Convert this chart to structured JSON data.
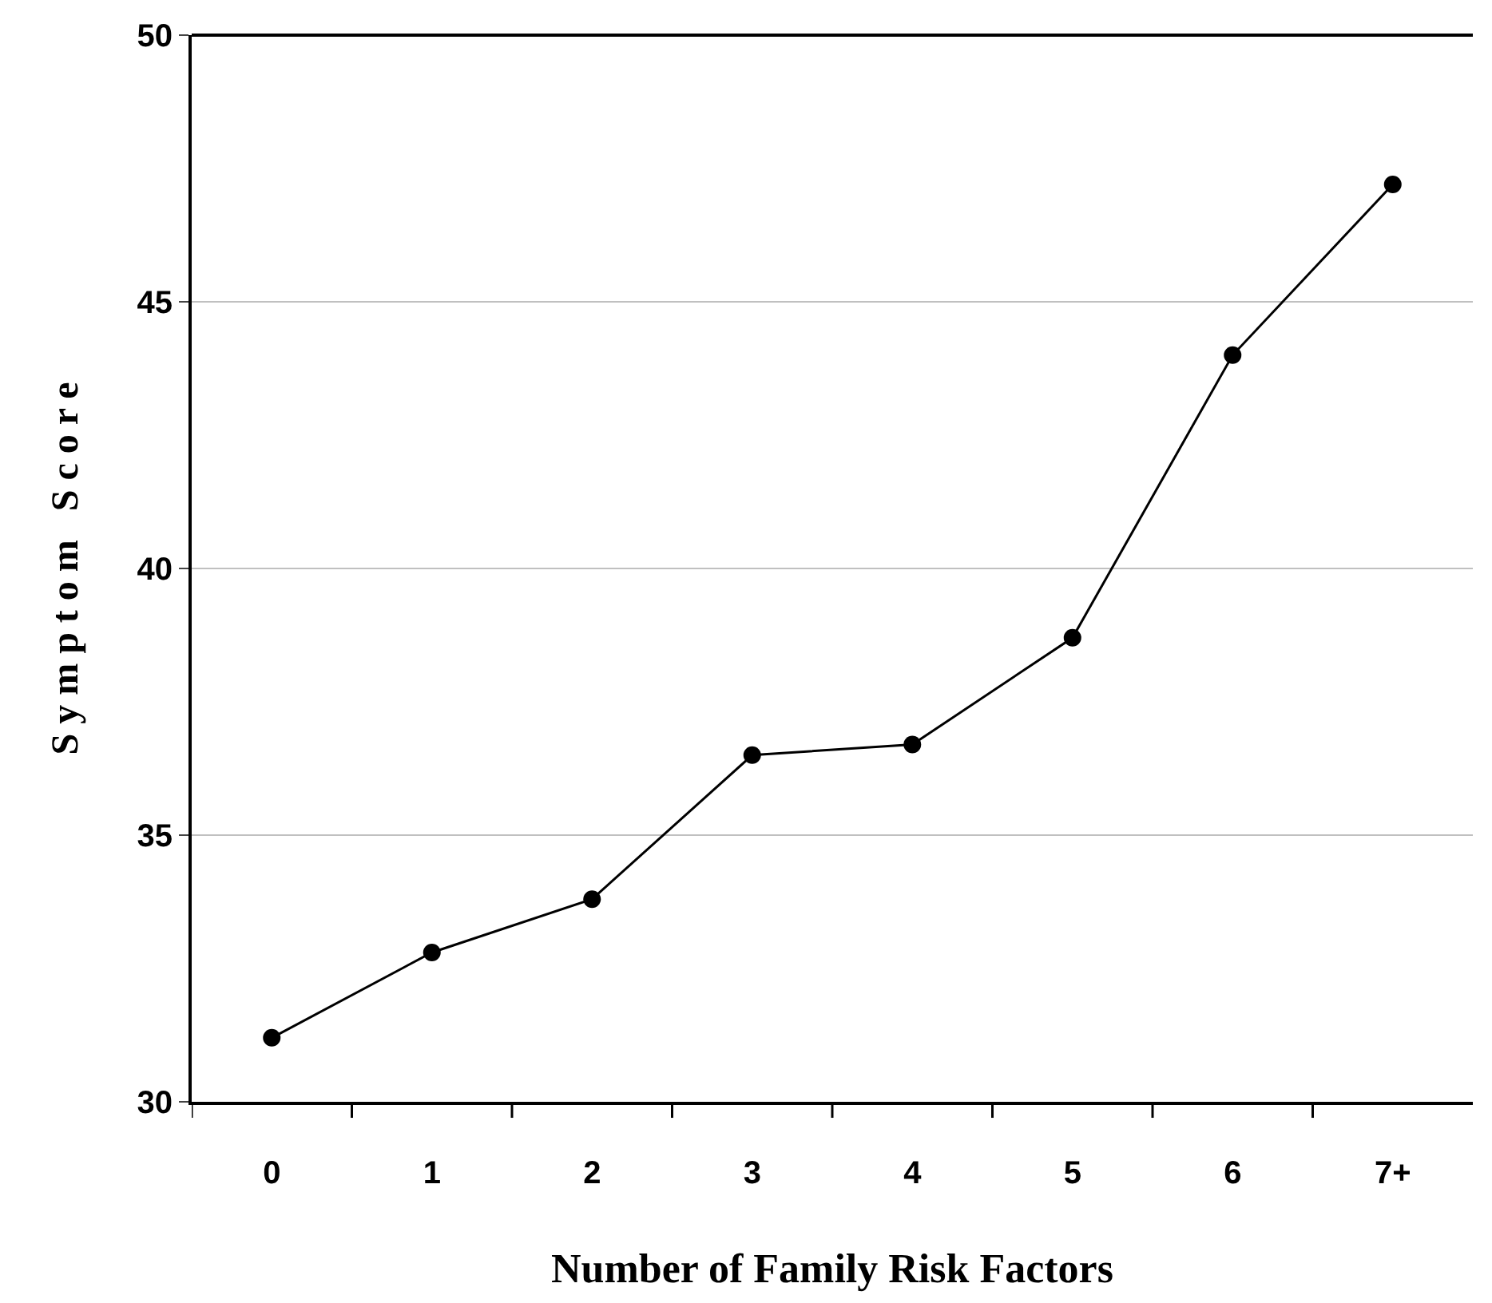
{
  "chart_data": {
    "type": "line",
    "xlabel": "Number of Family Risk Factors",
    "ylabel": "S y m p t o m   S c o r e",
    "categories": [
      "0",
      "1",
      "2",
      "3",
      "4",
      "5",
      "6",
      "7+"
    ],
    "series": [
      {
        "color": "#000000",
        "values": [
          31.2,
          32.8,
          33.8,
          36.5,
          36.7,
          38.7,
          44.0,
          47.2
        ]
      }
    ],
    "ylim": [
      30,
      50
    ],
    "yticks": [
      30,
      35,
      40,
      45,
      50
    ],
    "grid": "y",
    "marker": "circle",
    "line_style": "solid"
  }
}
